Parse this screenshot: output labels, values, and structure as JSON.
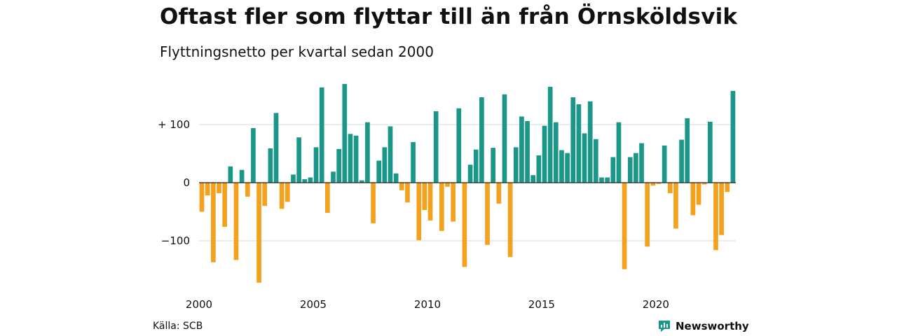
{
  "title": "Oftast fler som flyttar till än från Örnsköldsvik",
  "subtitle": "Flyttningsnetto per kvartal sedan 2000",
  "source": "Källa: SCB",
  "brand": {
    "name": "Newsworthy",
    "icon": "newsworthy-logo-icon",
    "color": "#1a9788"
  },
  "chart_data": {
    "type": "bar",
    "title": "Oftast fler som flyttar till än från Örnsköldsvik",
    "subtitle": "Flyttningsnetto per kvartal sedan 2000",
    "x_start": "2000 Q1",
    "x_ticks": [
      "2000",
      "2005",
      "2010",
      "2015",
      "2020"
    ],
    "y_ticks": [
      "+ 100",
      "0",
      "−100"
    ],
    "y_tick_values": [
      100,
      0,
      -100
    ],
    "ylim": [
      -175,
      175
    ],
    "grid": true,
    "legend": "none",
    "colors": {
      "positive": "#1a9788",
      "negative": "#f4a11d"
    },
    "values": [
      -50,
      -22,
      -137,
      -18,
      -76,
      28,
      -133,
      22,
      -24,
      94,
      -172,
      -40,
      59,
      120,
      -45,
      -33,
      14,
      78,
      6,
      9,
      61,
      164,
      -52,
      19,
      58,
      170,
      84,
      81,
      4,
      104,
      -70,
      38,
      61,
      97,
      16,
      -13,
      -34,
      70,
      -99,
      -47,
      -65,
      123,
      -83,
      -7,
      -67,
      128,
      -145,
      31,
      57,
      147,
      -107,
      60,
      -36,
      152,
      -128,
      61,
      114,
      106,
      13,
      47,
      98,
      165,
      104,
      56,
      51,
      147,
      135,
      85,
      140,
      75,
      9,
      9,
      44,
      104,
      -149,
      44,
      51,
      68,
      -110,
      -5,
      -2,
      64,
      -18,
      -79,
      74,
      111,
      -56,
      -38,
      -3,
      105,
      -116,
      -90,
      -16,
      158
    ]
  }
}
